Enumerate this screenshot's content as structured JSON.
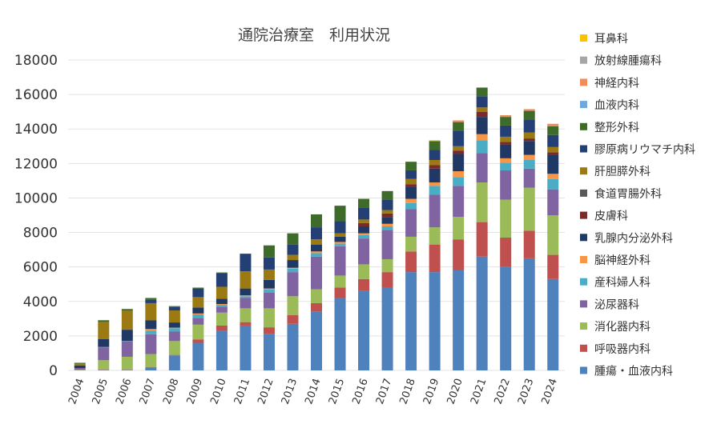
{
  "chart_data": {
    "type": "bar",
    "stacked": true,
    "title": "通院治療室　利用状況",
    "xlabel": "",
    "ylabel": "",
    "ylim": [
      0,
      18000
    ],
    "yticks": [
      0,
      2000,
      4000,
      6000,
      8000,
      10000,
      12000,
      14000,
      16000,
      18000
    ],
    "grid": true,
    "legend_position": "right",
    "categories": [
      "2004",
      "2005",
      "2006",
      "2007",
      "2008",
      "2009",
      "2010",
      "2011",
      "2012",
      "2013",
      "2014",
      "2015",
      "2016",
      "2017",
      "2018",
      "2019",
      "2020",
      "2021",
      "2022",
      "2023",
      "2024"
    ],
    "series": [
      {
        "name": "腫瘍・血液内科",
        "color": "#4F81BD",
        "values": [
          10,
          20,
          20,
          180,
          870,
          1600,
          2300,
          2600,
          2100,
          2700,
          3400,
          4200,
          4600,
          4800,
          5700,
          5700,
          5800,
          6600,
          6000,
          6500,
          5300
        ]
      },
      {
        "name": "呼吸器内科",
        "color": "#C0504D",
        "values": [
          10,
          20,
          20,
          20,
          30,
          200,
          300,
          200,
          400,
          500,
          500,
          600,
          700,
          900,
          1200,
          1600,
          1800,
          2000,
          1700,
          1600,
          1400
        ]
      },
      {
        "name": "消化器内科",
        "color": "#9BBB59",
        "values": [
          20,
          550,
          750,
          750,
          800,
          850,
          750,
          800,
          1100,
          1100,
          800,
          700,
          850,
          750,
          850,
          1000,
          1300,
          2300,
          2200,
          2500,
          2300
        ]
      },
      {
        "name": "泌尿器科",
        "color": "#8064A2",
        "values": [
          100,
          750,
          900,
          1150,
          550,
          400,
          350,
          600,
          900,
          1400,
          1900,
          1700,
          1500,
          1700,
          1600,
          1900,
          1800,
          1700,
          1700,
          1100,
          1500
        ]
      },
      {
        "name": "産科婦人科",
        "color": "#4BACC6",
        "values": [
          0,
          20,
          20,
          200,
          200,
          200,
          100,
          100,
          200,
          200,
          200,
          150,
          200,
          200,
          350,
          500,
          500,
          750,
          450,
          500,
          600
        ]
      },
      {
        "name": "脳神経外科",
        "color": "#F79646",
        "values": [
          0,
          0,
          0,
          100,
          30,
          50,
          50,
          50,
          50,
          50,
          100,
          100,
          100,
          150,
          250,
          200,
          350,
          350,
          250,
          300,
          300
        ]
      },
      {
        "name": "乳腺内分泌外科",
        "color": "#1F3864",
        "values": [
          150,
          450,
          650,
          500,
          300,
          350,
          300,
          400,
          500,
          450,
          400,
          300,
          400,
          400,
          700,
          800,
          1000,
          1000,
          800,
          800,
          1100
        ]
      },
      {
        "name": "皮膚科",
        "color": "#792A2A",
        "values": [
          0,
          0,
          0,
          0,
          0,
          0,
          0,
          0,
          0,
          0,
          0,
          0,
          200,
          200,
          150,
          200,
          200,
          300,
          150,
          150,
          150
        ]
      },
      {
        "name": "食道胃腸外科",
        "color": "#595959",
        "values": [
          0,
          0,
          0,
          0,
          0,
          0,
          0,
          0,
          0,
          0,
          0,
          0,
          0,
          0,
          0,
          0,
          0,
          0,
          0,
          0,
          0
        ]
      },
      {
        "name": "肝胆膵外科",
        "color": "#9C7A13",
        "values": [
          100,
          1000,
          1100,
          1000,
          700,
          600,
          700,
          1000,
          600,
          300,
          300,
          200,
          200,
          200,
          300,
          300,
          250,
          250,
          300,
          350,
          300
        ]
      },
      {
        "name": "膠原病リウマチ内科",
        "color": "#243F73",
        "values": [
          0,
          0,
          0,
          200,
          200,
          500,
          800,
          1000,
          700,
          600,
          700,
          700,
          700,
          600,
          500,
          600,
          900,
          650,
          650,
          750,
          700
        ]
      },
      {
        "name": "整形外科",
        "color": "#3E6B2A",
        "values": [
          50,
          100,
          100,
          100,
          50,
          50,
          30,
          20,
          700,
          650,
          750,
          900,
          500,
          500,
          500,
          500,
          500,
          500,
          500,
          500,
          500
        ]
      },
      {
        "name": "血液内科",
        "color": "#6FA8DC",
        "values": [
          0,
          0,
          0,
          0,
          0,
          0,
          0,
          0,
          0,
          0,
          0,
          0,
          0,
          0,
          0,
          0,
          0,
          0,
          0,
          0,
          0
        ]
      },
      {
        "name": "神経内科",
        "color": "#EF8C5A",
        "values": [
          0,
          0,
          0,
          0,
          0,
          0,
          0,
          0,
          0,
          0,
          0,
          0,
          0,
          0,
          0,
          0,
          100,
          0,
          100,
          100,
          150
        ]
      },
      {
        "name": "放射線腫瘍科",
        "color": "#A6A6A6",
        "values": [
          0,
          0,
          0,
          0,
          0,
          0,
          0,
          0,
          0,
          0,
          0,
          0,
          0,
          0,
          0,
          0,
          0,
          0,
          0,
          0,
          0
        ]
      },
      {
        "name": "耳鼻科",
        "color": "#FFC000",
        "values": [
          0,
          0,
          0,
          0,
          0,
          0,
          0,
          0,
          0,
          0,
          0,
          0,
          0,
          0,
          0,
          50,
          0,
          0,
          0,
          0,
          0
        ]
      }
    ]
  }
}
